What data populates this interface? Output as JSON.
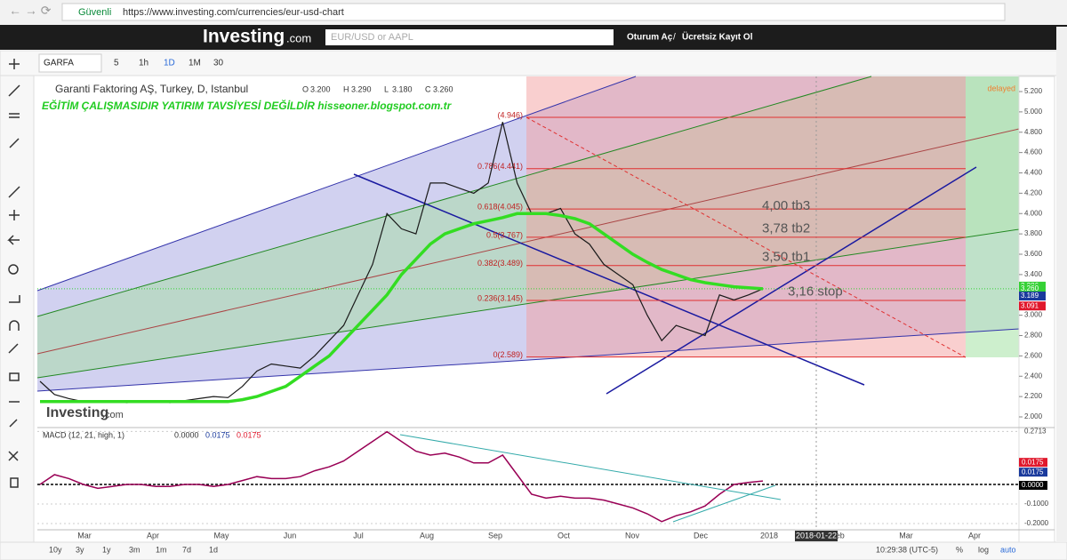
{
  "browser": {
    "secure": "Güvenli",
    "url": "https://www.investing.com/currencies/eur-usd-chart"
  },
  "site": {
    "logo": "Investing",
    "logo_suffix": ".com",
    "search": "EUR/USD or AAPL",
    "login": "Oturum Aç",
    "separator": "/",
    "signup": "Ücretsiz Kayıt Ol"
  },
  "toolbar": {
    "symbol": "GARFA",
    "intervals": [
      "5",
      "1h",
      "1D",
      "1M",
      "30"
    ]
  },
  "chart": {
    "title": "Garanti Faktoring AŞ, Turkey, D, Istanbul",
    "ohlc": [
      "O",
      "3.200",
      "H",
      "3.290",
      "L",
      "3.180",
      "C",
      "3.260"
    ],
    "notice": "EĞİTİM ÇALIŞMASIDIR YATIRIM TAVSİYESİ DEĞİLDİR hisseoner.blogspot.com.tr",
    "delayed": "delayed",
    "watermark": "Investing",
    "watermark_suffix": ".com",
    "ylim": [
      2.0,
      5.2
    ],
    "yticks": [
      {
        "value": 2.0,
        "label": "2.000"
      },
      {
        "value": 2.2,
        "label": "2.200"
      },
      {
        "value": 2.4,
        "label": "2.400"
      },
      {
        "value": 2.6,
        "label": "2.600"
      },
      {
        "value": 2.8,
        "label": "2.800"
      },
      {
        "value": 3.0,
        "label": "3.000"
      },
      {
        "value": 3.2,
        "label": "3.200"
      },
      {
        "value": 3.4,
        "label": "3.400"
      },
      {
        "value": 3.6,
        "label": "3.600"
      },
      {
        "value": 3.8,
        "label": "3.800"
      },
      {
        "value": 4.0,
        "label": "4.000"
      },
      {
        "value": 4.2,
        "label": "4.200"
      },
      {
        "value": 4.4,
        "label": "4.400"
      },
      {
        "value": 4.6,
        "label": "4.600"
      },
      {
        "value": 4.8,
        "label": "4.800"
      },
      {
        "value": 5.0,
        "label": "5.000"
      },
      {
        "value": 5.2,
        "label": "5.200"
      }
    ],
    "fib": [
      {
        "value": 4.946,
        "label": "(4.946)"
      },
      {
        "value": 4.441,
        "label": "0.786(4.441)"
      },
      {
        "value": 4.045,
        "label": "0.618(4.045)"
      },
      {
        "value": 3.767,
        "label": "0.5(3.767)"
      },
      {
        "value": 3.489,
        "label": "0.382(3.489)"
      },
      {
        "value": 3.145,
        "label": "0.236(3.145)"
      },
      {
        "value": 2.589,
        "label": "0(2.589)"
      }
    ],
    "targets": [
      {
        "value": 4.0,
        "label": "4,00 tb3"
      },
      {
        "value": 3.78,
        "label": "3,78 tb2"
      },
      {
        "value": 3.5,
        "label": "3,50 tb1"
      },
      {
        "value": 3.16,
        "label": "3,16 stop"
      }
    ],
    "badges": [
      {
        "value": 3.286,
        "color": "#35d135"
      },
      {
        "value": 3.26,
        "label": "3.260",
        "color": "#35d135"
      },
      {
        "value": 3.189,
        "color": "#1a3a9c"
      },
      {
        "value": 3.091,
        "color": "#e0182c"
      }
    ],
    "series": [
      {
        "name": "Close",
        "color": "#1a1a1a",
        "values": [
          2.35,
          2.22,
          2.18,
          2.15,
          2.16,
          2.15,
          2.14,
          2.15,
          2.15,
          2.14,
          2.16,
          2.18,
          2.2,
          2.19,
          2.3,
          2.45,
          2.52,
          2.5,
          2.48,
          2.6,
          2.75,
          2.9,
          3.2,
          3.5,
          4.0,
          3.85,
          3.8,
          4.3,
          4.3,
          4.25,
          4.2,
          4.3,
          4.9,
          4.3,
          4.0,
          4.0,
          4.05,
          3.8,
          3.7,
          3.5,
          3.4,
          3.3,
          3.0,
          2.75,
          2.9,
          2.85,
          2.8,
          3.2,
          3.15,
          3.2,
          3.26
        ]
      },
      {
        "name": "MA",
        "color": "#33dd22",
        "values": [
          2.15,
          2.15,
          2.15,
          2.15,
          2.15,
          2.15,
          2.15,
          2.15,
          2.15,
          2.15,
          2.15,
          2.15,
          2.15,
          2.15,
          2.17,
          2.2,
          2.25,
          2.3,
          2.4,
          2.5,
          2.6,
          2.75,
          2.9,
          3.05,
          3.2,
          3.4,
          3.55,
          3.7,
          3.8,
          3.85,
          3.9,
          3.93,
          3.96,
          4.0,
          4.0,
          4.0,
          3.98,
          3.95,
          3.9,
          3.8,
          3.7,
          3.6,
          3.52,
          3.45,
          3.4,
          3.35,
          3.32,
          3.3,
          3.28,
          3.27,
          3.26
        ]
      }
    ]
  },
  "macd": {
    "label": "MACD (12, 21, high, 1)",
    "readout": [
      "0.0000",
      "0.0175",
      "0.0175"
    ],
    "ticks": [
      0.2713,
      {
        "value": -0.1,
        "label": "-0.1000"
      },
      {
        "value": -0.2,
        "label": "-0.2000"
      }
    ],
    "badges": [
      {
        "value": 0.0175,
        "label": "0.0175",
        "color": "#e0182c"
      },
      {
        "value": 0.0175,
        "label": "0.0175",
        "color": "#1a3a9c"
      },
      {
        "value": 0,
        "label": "0.0000",
        "color": "#000"
      }
    ],
    "values": [
      0.0,
      0.05,
      0.03,
      0.0,
      -0.02,
      -0.01,
      0.0,
      0.0,
      -0.01,
      -0.01,
      0.0,
      0.0,
      -0.01,
      0.0,
      0.02,
      0.04,
      0.03,
      0.03,
      0.04,
      0.07,
      0.09,
      0.12,
      0.17,
      0.22,
      0.27,
      0.22,
      0.17,
      0.15,
      0.16,
      0.14,
      0.11,
      0.11,
      0.15,
      0.05,
      -0.05,
      -0.07,
      -0.06,
      -0.07,
      -0.07,
      -0.08,
      -0.1,
      -0.12,
      -0.15,
      -0.19,
      -0.16,
      -0.14,
      -0.11,
      -0.05,
      0.0,
      0.01,
      0.0175
    ]
  },
  "time_axis": {
    "labels": [
      "Mar",
      "Apr",
      "May",
      "Jun",
      "Jul",
      "Aug",
      "Sep",
      "Oct",
      "Nov",
      "Dec",
      "2018",
      "Feb",
      "Mar",
      "Apr"
    ],
    "cursor": "2018-01-22"
  },
  "bottom": {
    "ranges": [
      "10y",
      "3y",
      "1y",
      "3m",
      "1m",
      "7d",
      "1d"
    ],
    "clock": "10:29:38 (UTC-5)",
    "options": [
      "%",
      "log",
      "auto"
    ]
  }
}
